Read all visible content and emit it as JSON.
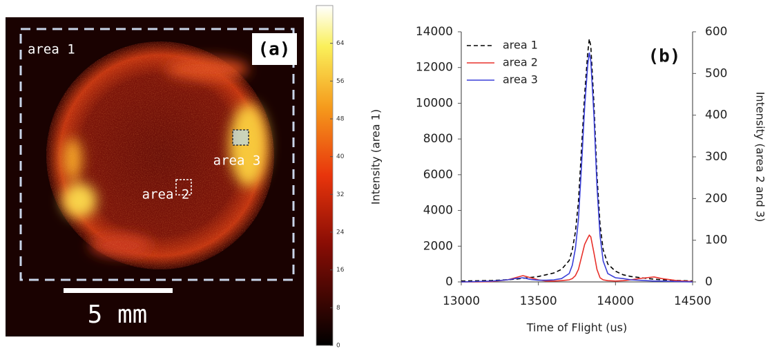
{
  "chart_data": [
    {
      "type": "image",
      "panel_label": "(a)",
      "regions": [
        "area 1",
        "area 2",
        "area 3"
      ],
      "scale_bar": "5 mm",
      "clim": [
        0,
        72
      ],
      "colorbar_ticks": [
        0,
        8,
        16,
        24,
        32,
        40,
        48,
        56,
        64
      ]
    },
    {
      "type": "line",
      "panel_label": "(b)",
      "x_label": "Time of Flight (us)",
      "y_label": "Intensity (area 1)",
      "y2_label": "Intensity (area 2 and 3)",
      "x": [
        13000,
        13100,
        13200,
        13300,
        13350,
        13400,
        13450,
        13500,
        13550,
        13600,
        13650,
        13700,
        13720,
        13740,
        13760,
        13780,
        13800,
        13820,
        13830,
        13840,
        13860,
        13880,
        13900,
        13920,
        13950,
        14000,
        14050,
        14100,
        14150,
        14200,
        14250,
        14300,
        14400,
        14500
      ],
      "series": [
        {
          "name": "area 1",
          "color": "#000000",
          "dash": true,
          "axis": "y",
          "values": [
            50,
            60,
            80,
            120,
            150,
            200,
            250,
            300,
            400,
            500,
            700,
            1200,
            1800,
            2800,
            4500,
            7500,
            10500,
            12800,
            13600,
            13200,
            10000,
            6000,
            3200,
            1800,
            1000,
            600,
            400,
            300,
            250,
            200,
            150,
            120,
            80,
            50
          ]
        },
        {
          "name": "area 2",
          "color": "#e8302a",
          "dash": false,
          "axis": "y2",
          "values": [
            0,
            0,
            1,
            5,
            10,
            15,
            10,
            5,
            2,
            2,
            3,
            5,
            8,
            15,
            30,
            60,
            90,
            105,
            112,
            108,
            70,
            30,
            10,
            5,
            3,
            2,
            3,
            5,
            8,
            10,
            12,
            8,
            3,
            1
          ]
        },
        {
          "name": "area 3",
          "color": "#3a3fd8",
          "dash": false,
          "axis": "y2",
          "values": [
            0,
            1,
            2,
            5,
            8,
            10,
            6,
            4,
            4,
            5,
            8,
            20,
            40,
            80,
            150,
            280,
            420,
            520,
            550,
            530,
            400,
            230,
            110,
            50,
            20,
            10,
            8,
            5,
            4,
            3,
            2,
            2,
            1,
            0
          ]
        }
      ],
      "xlim": [
        13000,
        14500
      ],
      "xticks": [
        13000,
        13500,
        14000,
        14500
      ],
      "ylim": [
        0,
        14000
      ],
      "yticks": [
        0,
        2000,
        4000,
        6000,
        8000,
        10000,
        12000,
        14000
      ],
      "y2lim": [
        0,
        600
      ],
      "y2ticks": [
        0,
        100,
        200,
        300,
        400,
        500,
        600
      ],
      "legend": "top-left"
    }
  ]
}
